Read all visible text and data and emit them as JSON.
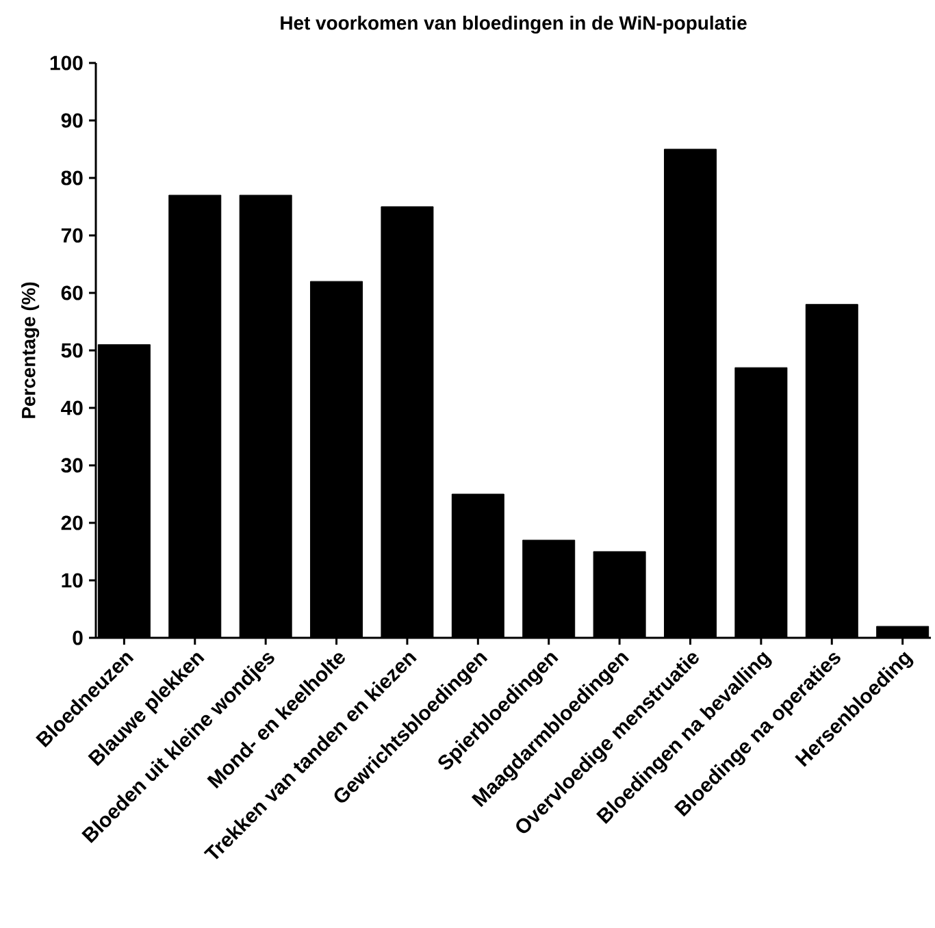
{
  "chart_data": {
    "type": "bar",
    "title": "Het voorkomen van bloedingen in de WiN-populatie",
    "ylabel": "Percentage (%)",
    "categories": [
      "Bloedneuzen",
      "Blauwe plekken",
      "Bloeden uit kleine wondjes",
      "Mond- en keelholte",
      "Trekken van tanden en kiezen",
      "Gewrichtsbloedingen",
      "Spierbloedingen",
      "Maagdarmbloedingen",
      "Overvloedige menstruatie",
      "Bloedingen na bevalling",
      "Bloedinge na operaties",
      "Hersenbloeding"
    ],
    "values": [
      51,
      77,
      77,
      62,
      75,
      25,
      17,
      15,
      85,
      47,
      58,
      2
    ],
    "color": "#000000",
    "ylim": [
      0,
      100
    ],
    "yticks": [
      0,
      10,
      20,
      30,
      40,
      50,
      60,
      70,
      80,
      90,
      100
    ],
    "grid": false
  }
}
